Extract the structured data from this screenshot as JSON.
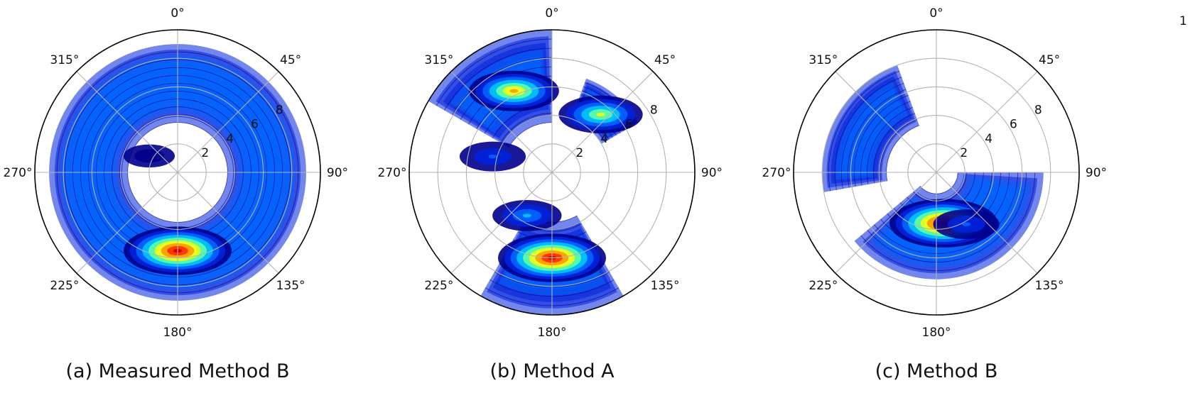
{
  "colorscale": [
    "#00008c",
    "#0022dd",
    "#0066ff",
    "#00c8ff",
    "#5effa0",
    "#f4ff14",
    "#ff9a00",
    "#ff2a00",
    "#c80000"
  ],
  "corner_text": "1",
  "chart_data": [
    {
      "type": "polar-contour",
      "caption": "(a) Measured Method B",
      "angular_ticks": [
        "0°",
        "45°",
        "90°",
        "135°",
        "180°",
        "225°",
        "270°",
        "315°"
      ],
      "radial_ticks": [
        2,
        4,
        6,
        8
      ],
      "radial_max": 10,
      "tick_angle_deg": 60,
      "hot_spots": [
        {
          "theta": 180,
          "r": 5.5,
          "intensity": 1.0
        },
        {
          "theta": 300,
          "r": 2.3,
          "intensity": 0.05
        }
      ],
      "regions": [
        {
          "theta_range": [
            0,
            360
          ],
          "r_range": [
            3.5,
            9.0
          ],
          "intensity": 0.35
        }
      ]
    },
    {
      "type": "polar-contour",
      "caption": "(b) Method A",
      "angular_ticks": [
        "0°",
        "45°",
        "90°",
        "135°",
        "180°",
        "225°",
        "270°",
        "315°"
      ],
      "radial_ticks": [
        2,
        4,
        6,
        8
      ],
      "radial_max": 10,
      "tick_angle_deg": 60,
      "hot_spots": [
        {
          "theta": 180,
          "r": 6.0,
          "intensity": 1.0
        },
        {
          "theta": 335,
          "r": 6.3,
          "intensity": 0.7
        },
        {
          "theta": 40,
          "r": 5.3,
          "intensity": 0.6
        },
        {
          "theta": 210,
          "r": 3.5,
          "intensity": 0.35
        },
        {
          "theta": 285,
          "r": 4.3,
          "intensity": 0.3
        }
      ],
      "regions": [
        {
          "theta_range": [
            300,
            360
          ],
          "r_range": [
            3.5,
            10
          ],
          "intensity": 0.3
        },
        {
          "theta_range": [
            20,
            60
          ],
          "r_range": [
            4.0,
            7.0
          ],
          "intensity": 0.3
        },
        {
          "theta_range": [
            150,
            210
          ],
          "r_range": [
            3.5,
            10
          ],
          "intensity": 0.3
        }
      ]
    },
    {
      "type": "polar-contour",
      "caption": "(c) Method B",
      "angular_ticks": [
        "0°",
        "45°",
        "90°",
        "135°",
        "180°",
        "225°",
        "270°",
        "315°"
      ],
      "radial_ticks": [
        2,
        4,
        6,
        8
      ],
      "radial_max": 10,
      "tick_angle_deg": 60,
      "hot_spots": [
        {
          "theta": 172,
          "r": 3.6,
          "intensity": 1.0
        },
        {
          "theta": 150,
          "r": 4.2,
          "intensity": 0.3
        }
      ],
      "regions": [
        {
          "theta_range": [
            90,
            230
          ],
          "r_range": [
            1.5,
            7.5
          ],
          "intensity": 0.35
        },
        {
          "theta_range": [
            260,
            340
          ],
          "r_range": [
            3.5,
            8.0
          ],
          "intensity": 0.3
        }
      ]
    }
  ]
}
